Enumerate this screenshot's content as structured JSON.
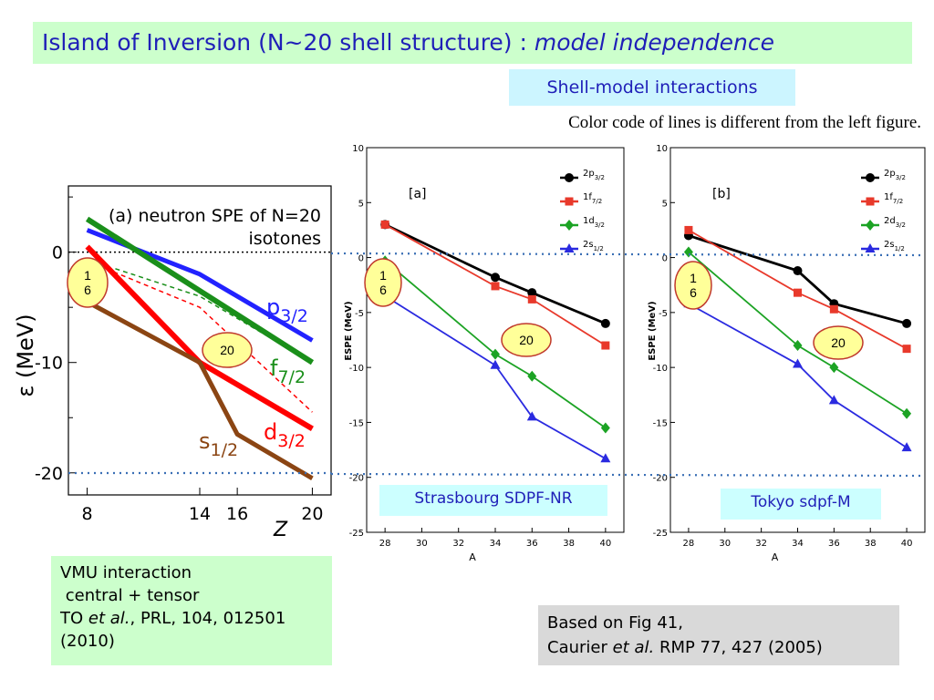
{
  "title": {
    "main": "Island of Inversion (N~20 shell structure) : ",
    "italic": "model independence"
  },
  "interactions_label": "Shell-model interactions",
  "color_note": "Color code of lines is different from the left figure.",
  "vmu": {
    "line1": "VMU interaction",
    "line2": " central + tensor",
    "line3a": "TO ",
    "line3b": "et al.",
    "line3c": ", PRL, 104, 012501",
    "line4": "(2010)"
  },
  "based": {
    "line1": "Based on Fig 41,",
    "line2a": "Caurier ",
    "line2b": "et al.",
    "line2c": " RMP 77, 427 (2005)"
  },
  "sdpfnr_label": "Strasbourg SDPF-NR",
  "tokyo_label": "Tokyo sdpf-M",
  "oval_16": "1\n6",
  "oval_20": "20",
  "colors": {
    "p32": "#2222ff",
    "f72": "#1a8f1a",
    "d32": "#ff0000",
    "s12": "#8b4513",
    "black": "#000000",
    "red": "#e8392b",
    "green": "#1ca324",
    "blue": "#2a2ae0"
  },
  "chart_data": [
    {
      "type": "line",
      "title": "(a) neutron SPE of N=20 isotones",
      "xlabel": "Z",
      "ylabel": "ε (MeV)",
      "xticks": [
        8,
        14,
        16,
        20
      ],
      "yticks": [
        0,
        -10,
        -20
      ],
      "xlim": [
        7,
        21
      ],
      "ylim": [
        -22,
        6
      ],
      "series": [
        {
          "name": "p3/2",
          "label_main": "p",
          "label_sub": "3/2",
          "color": "#2222ff",
          "x": [
            8,
            14,
            20
          ],
          "y": [
            2,
            -2,
            -8
          ]
        },
        {
          "name": "f7/2",
          "label_main": "f",
          "label_sub": "7/2",
          "color": "#1a8f1a",
          "x": [
            8,
            14,
            20
          ],
          "y": [
            3,
            -3.5,
            -10
          ]
        },
        {
          "name": "d3/2",
          "label_main": "d",
          "label_sub": "3/2",
          "color": "#ff0000",
          "x": [
            8,
            14,
            20
          ],
          "y": [
            0.5,
            -10,
            -16
          ]
        },
        {
          "name": "s1/2",
          "label_main": "s",
          "label_sub": "1/2",
          "color": "#8b4513",
          "x": [
            8,
            14,
            16,
            20
          ],
          "y": [
            -4.5,
            -10,
            -16.5,
            -20.5
          ]
        }
      ]
    },
    {
      "type": "line",
      "panel": "[a]",
      "xlabel": "A",
      "ylabel": "ESPE (MeV)",
      "xticks": [
        28,
        30,
        32,
        34,
        36,
        38,
        40
      ],
      "yticks": [
        10,
        5,
        0,
        -5,
        -10,
        -15,
        -20,
        -25
      ],
      "xlim": [
        27,
        41
      ],
      "ylim": [
        -25,
        10
      ],
      "series": [
        {
          "name": "2p3/2",
          "n": "2",
          "l": "p",
          "j": "3/2",
          "color": "#000000",
          "marker": "circle",
          "x": [
            28,
            34,
            36,
            40
          ],
          "y": [
            3,
            -1.8,
            -3.2,
            -6
          ]
        },
        {
          "name": "1f7/2",
          "n": "1",
          "l": "f",
          "j": "7/2",
          "color": "#e8392b",
          "marker": "square",
          "x": [
            28,
            34,
            36,
            40
          ],
          "y": [
            3,
            -2.6,
            -3.8,
            -8
          ]
        },
        {
          "name": "1d3/2",
          "n": "1",
          "l": "d",
          "j": "3/2",
          "color": "#1ca324",
          "marker": "diamond",
          "x": [
            28,
            34,
            36,
            40
          ],
          "y": [
            -0.3,
            -8.8,
            -10.8,
            -15.5
          ]
        },
        {
          "name": "2s1/2",
          "n": "2",
          "l": "s",
          "j": "1/2",
          "color": "#2a2ae0",
          "marker": "triangle",
          "x": [
            28,
            34,
            36,
            40
          ],
          "y": [
            -3.5,
            -9.8,
            -14.5,
            -18.3
          ]
        }
      ]
    },
    {
      "type": "line",
      "panel": "[b]",
      "xlabel": "A",
      "ylabel": "ESPE (MeV)",
      "xticks": [
        28,
        30,
        32,
        34,
        36,
        38,
        40
      ],
      "yticks": [
        10,
        5,
        0,
        -5,
        -10,
        -15,
        -20,
        -25
      ],
      "xlim": [
        27,
        41
      ],
      "ylim": [
        -25,
        10
      ],
      "series": [
        {
          "name": "2p3/2",
          "n": "2",
          "l": "p",
          "j": "3/2",
          "color": "#000000",
          "marker": "circle",
          "x": [
            28,
            34,
            36,
            40
          ],
          "y": [
            2,
            -1.2,
            -4.2,
            -6
          ]
        },
        {
          "name": "1f7/2",
          "n": "1",
          "l": "f",
          "j": "7/2",
          "color": "#e8392b",
          "marker": "square",
          "x": [
            28,
            34,
            36,
            40
          ],
          "y": [
            2.5,
            -3.2,
            -4.7,
            -8.3
          ]
        },
        {
          "name": "2d3/2",
          "n": "2",
          "l": "d",
          "j": "3/2",
          "color": "#1ca324",
          "marker": "diamond",
          "x": [
            28,
            34,
            36,
            40
          ],
          "y": [
            0.5,
            -8,
            -10,
            -14.2
          ]
        },
        {
          "name": "2s1/2",
          "n": "2",
          "l": "s",
          "j": "1/2",
          "color": "#2a2ae0",
          "marker": "triangle",
          "x": [
            28,
            34,
            36,
            40
          ],
          "y": [
            -4.2,
            -9.7,
            -13,
            -17.3
          ]
        }
      ]
    }
  ]
}
